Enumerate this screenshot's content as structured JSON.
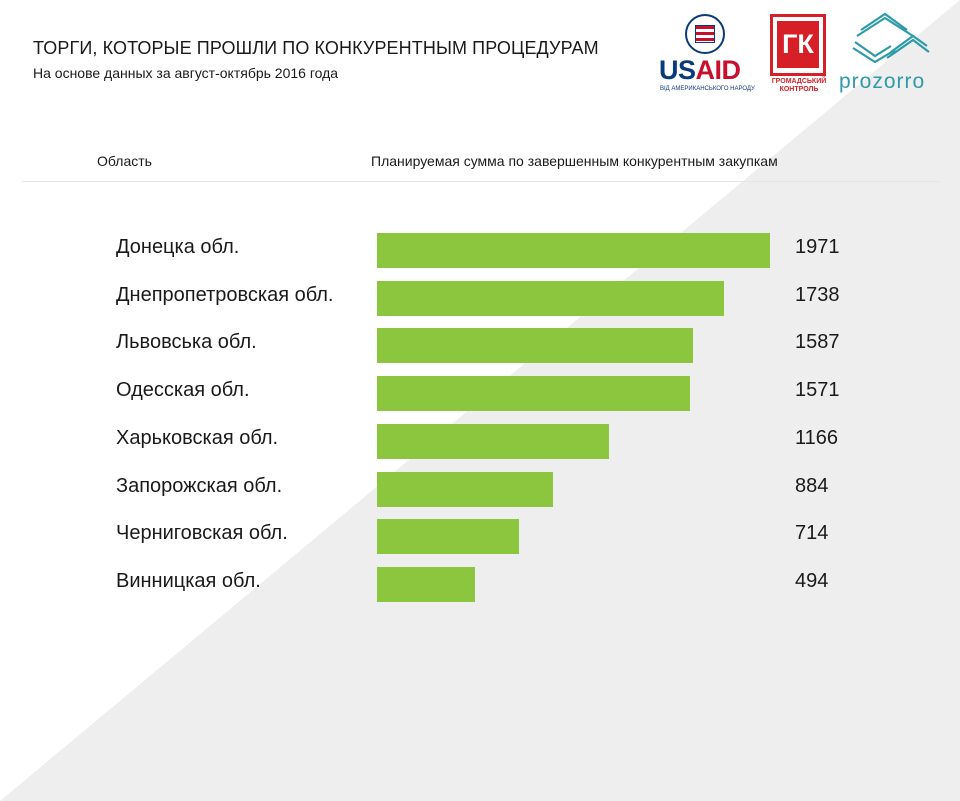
{
  "header": {
    "title": "ТОРГИ, КОТОРЫЕ ПРОШЛИ ПО КОНКУРЕНТНЫМ ПРОЦЕДУРАМ",
    "subtitle": "На основе данных за август-октябрь  2016 года"
  },
  "logos": {
    "usaid_us": "US",
    "usaid_aid": "AID",
    "usaid_sub": "ВІД АМЕРИКАНСЬКОГО НАРОДУ",
    "gk_letters": "ГК",
    "gk_sub_line1": "ГРОМАДСЬКИЙ",
    "gk_sub_line2": "КОНТРОЛЬ",
    "prozorro": "prozorro"
  },
  "columns": {
    "region": "Область",
    "amount": "Планируемая сумма по завершенным конкурентным закупкам"
  },
  "colors": {
    "bar": "#8cc63f",
    "usaid_blue": "#0a3a7a",
    "usaid_red": "#c8102e",
    "gk_red": "#d71f27",
    "prozorro_teal": "#2f9aa8"
  },
  "chart_data": {
    "type": "bar",
    "orientation": "horizontal",
    "categories": [
      "Донецка обл.",
      "Днепропетровская обл.",
      "Львовська обл.",
      "Одесская обл.",
      "Харьковская обл.",
      "Запорожская обл.",
      "Черниговская обл.",
      "Винницкая обл."
    ],
    "values": [
      1971,
      1738,
      1587,
      1571,
      1166,
      884,
      714,
      494
    ],
    "xlim": [
      0,
      1971
    ],
    "grid": false,
    "legend": "none"
  }
}
